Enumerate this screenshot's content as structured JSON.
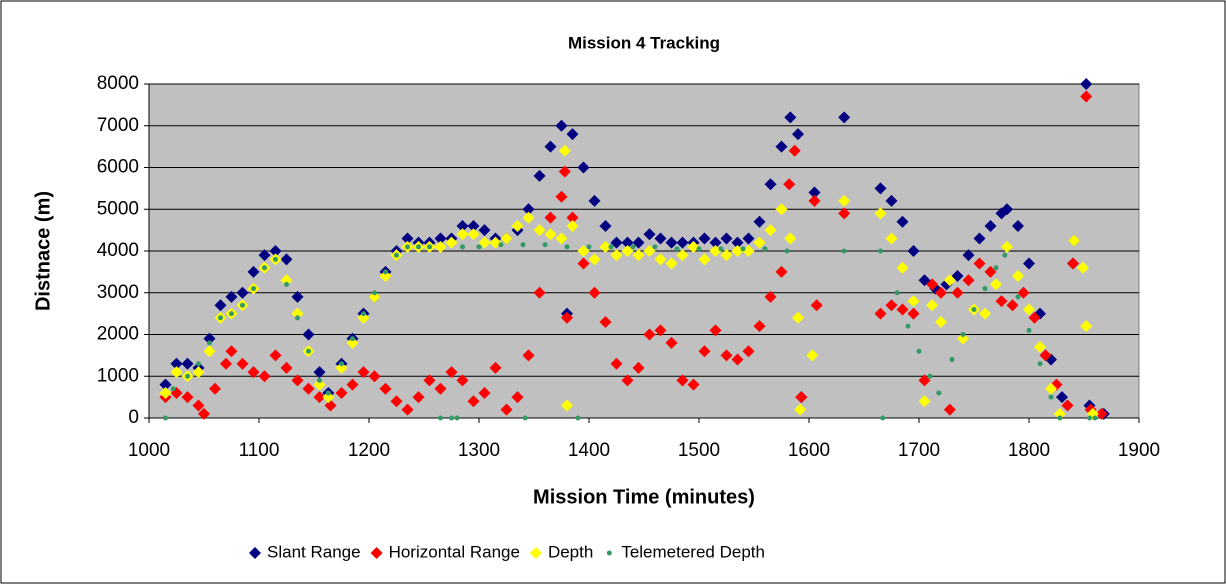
{
  "chart_data": {
    "type": "scatter",
    "title": "Mission 4 Tracking",
    "x_label": "Mission Time (minutes)",
    "y_label": "Distnace (m)",
    "xlim": [
      1000,
      1900
    ],
    "xticks": [
      1000,
      1100,
      1200,
      1300,
      1400,
      1500,
      1600,
      1700,
      1800,
      1900
    ],
    "ylim": [
      0,
      8000
    ],
    "yticks": [
      0,
      1000,
      2000,
      3000,
      4000,
      5000,
      6000,
      7000,
      8000
    ],
    "grid": true,
    "legend": "bottom",
    "plot_background": "#c0c0c0",
    "series": [
      {
        "name": "Slant Range",
        "color": "#000080",
        "marker": "diamond",
        "x": [
          1015,
          1025,
          1035,
          1045,
          1055,
          1065,
          1075,
          1085,
          1095,
          1105,
          1115,
          1125,
          1135,
          1145,
          1155,
          1163,
          1175,
          1185,
          1195,
          1205,
          1215,
          1225,
          1235,
          1245,
          1255,
          1265,
          1275,
          1285,
          1295,
          1305,
          1315,
          1325,
          1335,
          1345,
          1355,
          1365,
          1375,
          1385,
          1395,
          1405,
          1415,
          1425,
          1435,
          1445,
          1455,
          1465,
          1475,
          1485,
          1495,
          1505,
          1515,
          1525,
          1535,
          1545,
          1555,
          1565,
          1575,
          1583,
          1590,
          1380,
          1593,
          1605,
          1632,
          1665,
          1675,
          1685,
          1695,
          1705,
          1715,
          1725,
          1735,
          1745,
          1755,
          1765,
          1775,
          1780,
          1790,
          1800,
          1810,
          1820,
          1830,
          1840,
          1841,
          1852,
          1855,
          1868
        ],
        "values": [
          800,
          1300,
          1300,
          1200,
          1900,
          2700,
          2900,
          3000,
          3500,
          3900,
          4000,
          3800,
          2900,
          2000,
          1100,
          600,
          1300,
          1900,
          2500,
          2900,
          3500,
          4000,
          4300,
          4200,
          4200,
          4300,
          4300,
          4600,
          4600,
          4500,
          4300,
          4300,
          4500,
          5000,
          5800,
          6500,
          7000,
          6800,
          6000,
          5200,
          4600,
          4200,
          4200,
          4200,
          4400,
          4300,
          4200,
          4200,
          4200,
          4300,
          4200,
          4300,
          4200,
          4300,
          4700,
          5600,
          6500,
          7200,
          6800,
          2500,
          500,
          5400,
          7200,
          5500,
          5200,
          4700,
          4000,
          3300,
          3100,
          3200,
          3400,
          3900,
          4300,
          4600,
          4900,
          5000,
          4600,
          3700,
          2500,
          1400,
          500,
          3700,
          4250,
          8000,
          300,
          100
        ]
      },
      {
        "name": "Horizontal Range",
        "color": "#ff0000",
        "marker": "diamond",
        "x": [
          1015,
          1025,
          1035,
          1045,
          1050,
          1060,
          1070,
          1075,
          1085,
          1095,
          1105,
          1115,
          1125,
          1135,
          1145,
          1155,
          1165,
          1175,
          1185,
          1195,
          1205,
          1215,
          1225,
          1235,
          1245,
          1255,
          1265,
          1275,
          1285,
          1295,
          1305,
          1315,
          1325,
          1335,
          1345,
          1355,
          1365,
          1375,
          1378,
          1380,
          1385,
          1395,
          1405,
          1415,
          1425,
          1435,
          1445,
          1455,
          1465,
          1475,
          1485,
          1495,
          1505,
          1515,
          1525,
          1535,
          1545,
          1555,
          1565,
          1575,
          1582,
          1587,
          1593,
          1605,
          1607,
          1632,
          1665,
          1675,
          1685,
          1695,
          1705,
          1712,
          1720,
          1728,
          1735,
          1745,
          1755,
          1765,
          1775,
          1785,
          1795,
          1805,
          1815,
          1825,
          1835,
          1840,
          1852,
          1856,
          1866
        ],
        "values": [
          500,
          600,
          500,
          300,
          100,
          700,
          1300,
          1600,
          1300,
          1100,
          1000,
          1500,
          1200,
          900,
          700,
          500,
          300,
          600,
          800,
          1100,
          1000,
          700,
          400,
          200,
          500,
          900,
          700,
          1100,
          900,
          400,
          600,
          1200,
          200,
          500,
          1500,
          3000,
          4800,
          5300,
          5900,
          2400,
          4800,
          3700,
          3000,
          2300,
          1300,
          900,
          1200,
          2000,
          2100,
          1800,
          900,
          800,
          1600,
          2100,
          1500,
          1400,
          1600,
          2200,
          2900,
          3500,
          5600,
          6400,
          500,
          5200,
          2700,
          4900,
          2500,
          2700,
          2600,
          2500,
          900,
          3200,
          3000,
          200,
          3000,
          3300,
          3700,
          3500,
          2800,
          2700,
          3000,
          2400,
          1500,
          800,
          300,
          3700,
          7700,
          200,
          100
        ]
      },
      {
        "name": "Depth",
        "color": "#ffff00",
        "marker": "diamond",
        "x": [
          1015,
          1025,
          1035,
          1045,
          1055,
          1065,
          1075,
          1085,
          1095,
          1105,
          1115,
          1125,
          1135,
          1145,
          1155,
          1163,
          1175,
          1185,
          1195,
          1205,
          1215,
          1225,
          1235,
          1245,
          1255,
          1265,
          1275,
          1285,
          1295,
          1305,
          1315,
          1325,
          1335,
          1345,
          1355,
          1365,
          1375,
          1378,
          1380,
          1385,
          1395,
          1405,
          1415,
          1425,
          1435,
          1445,
          1455,
          1465,
          1475,
          1485,
          1495,
          1505,
          1515,
          1525,
          1535,
          1545,
          1555,
          1565,
          1575,
          1583,
          1590,
          1592,
          1603,
          1632,
          1665,
          1675,
          1685,
          1695,
          1705,
          1712,
          1720,
          1728,
          1740,
          1750,
          1760,
          1770,
          1780,
          1790,
          1800,
          1810,
          1820,
          1828,
          1841,
          1849,
          1852,
          1858
        ],
        "values": [
          600,
          1100,
          1000,
          1100,
          1600,
          2400,
          2500,
          2700,
          3100,
          3600,
          3800,
          3300,
          2500,
          1600,
          800,
          500,
          1200,
          1800,
          2400,
          2900,
          3400,
          3900,
          4100,
          4100,
          4100,
          4100,
          4200,
          4400,
          4400,
          4200,
          4200,
          4300,
          4600,
          4800,
          4500,
          4400,
          4300,
          6400,
          300,
          4600,
          4000,
          3800,
          4100,
          3900,
          4000,
          3900,
          4000,
          3800,
          3700,
          3900,
          4100,
          3800,
          4000,
          3900,
          4000,
          4000,
          4200,
          4500,
          5000,
          4300,
          2400,
          200,
          1500,
          5200,
          4900,
          4300,
          3600,
          2800,
          400,
          2700,
          2300,
          3300,
          1900,
          2600,
          2500,
          3200,
          4100,
          3400,
          2600,
          1700,
          700,
          100,
          4250,
          3600,
          2200,
          100
        ]
      },
      {
        "name": "Telemetered Depth",
        "color": "#339966",
        "marker": "circle",
        "x": [
          1015,
          1022,
          1035,
          1045,
          1055,
          1065,
          1075,
          1085,
          1095,
          1105,
          1115,
          1125,
          1135,
          1145,
          1155,
          1163,
          1175,
          1185,
          1195,
          1205,
          1215,
          1225,
          1235,
          1245,
          1255,
          1265,
          1275,
          1280,
          1285,
          1300,
          1320,
          1340,
          1342,
          1360,
          1380,
          1390,
          1400,
          1420,
          1440,
          1460,
          1480,
          1500,
          1520,
          1540,
          1560,
          1580,
          1632,
          1665,
          1667,
          1680,
          1690,
          1700,
          1710,
          1718,
          1730,
          1740,
          1750,
          1760,
          1770,
          1778,
          1790,
          1800,
          1810,
          1820,
          1828,
          1855,
          1860
        ],
        "values": [
          0,
          700,
          1000,
          1300,
          1800,
          2400,
          2500,
          2700,
          3100,
          3600,
          3800,
          3200,
          2400,
          1600,
          900,
          600,
          1300,
          1900,
          2500,
          3000,
          3500,
          3900,
          4100,
          4100,
          4100,
          0,
          0,
          0,
          4100,
          4100,
          4150,
          4150,
          0,
          4150,
          4100,
          0,
          4100,
          4100,
          4100,
          4100,
          4050,
          4050,
          4050,
          4050,
          4050,
          4000,
          4000,
          4000,
          0,
          3000,
          2200,
          1600,
          1000,
          600,
          1400,
          2000,
          2600,
          3100,
          3600,
          3900,
          2900,
          2100,
          1300,
          500,
          0,
          0,
          0
        ]
      }
    ]
  }
}
